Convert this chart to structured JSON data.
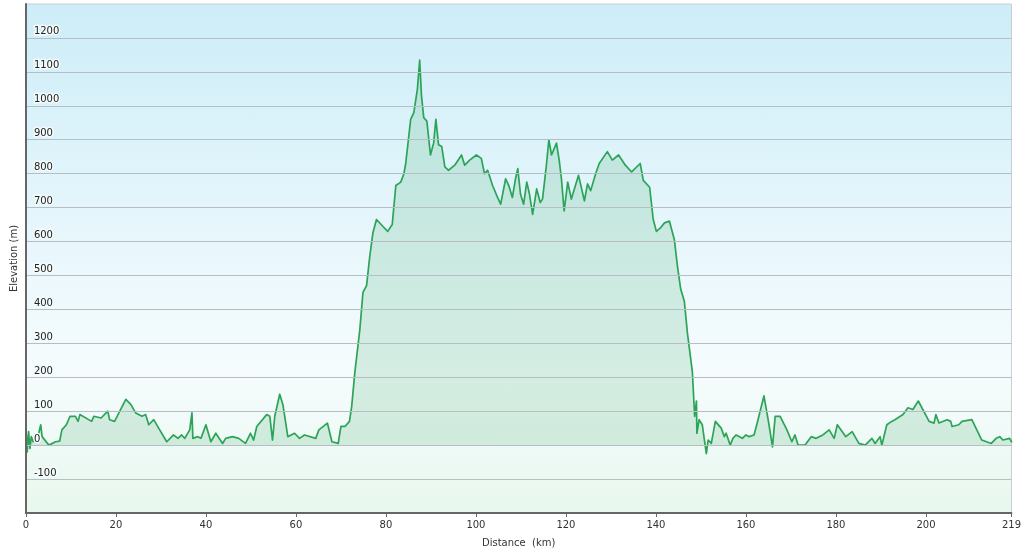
{
  "chart_data": {
    "type": "area",
    "xlabel": "Distance  (km)",
    "ylabel": "Elevation (m)",
    "color": "#2ca457",
    "x": [
      0,
      0.3,
      0.6,
      0.9,
      1.2,
      1.6,
      2.0,
      2.5,
      3.3,
      3.6,
      5.1,
      6.6,
      7.5,
      8.0,
      9.0,
      9.8,
      11.0,
      11.6,
      12.0,
      14.6,
      15.1,
      16.7,
      18.2,
      18.6,
      19.7,
      22.2,
      23.3,
      24.4,
      25.8,
      26.6,
      27.3,
      28.4,
      29.5,
      31.3,
      32.8,
      33.8,
      34.6,
      35.3,
      36.4,
      36.9,
      37.1,
      38.2,
      38.9,
      40.0,
      41.1,
      42.2,
      43.7,
      44.4,
      45.9,
      47.3,
      48.8,
      49.9,
      50.6,
      51.3,
      53.5,
      54.2,
      54.8,
      55.3,
      56.4,
      57.1,
      58.2,
      59.7,
      60.8,
      61.9,
      64.4,
      65.1,
      67.0,
      68.0,
      69.4,
      70.0,
      70.9,
      71.9,
      72.4,
      73.1,
      74.2,
      74.9,
      75.7,
      76.4,
      77.1,
      77.9,
      79.3,
      80.4,
      81.4,
      82.2,
      83.3,
      84.0,
      84.4,
      85.5,
      86.2,
      87.0,
      87.5,
      87.9,
      88.4,
      89.1,
      89.9,
      90.6,
      91.1,
      91.7,
      92.4,
      93.1,
      93.9,
      95.3,
      96.8,
      97.5,
      98.6,
      100.1,
      101.2,
      101.9,
      102.6,
      103.7,
      104.8,
      105.5,
      106.6,
      107.3,
      108.1,
      108.8,
      109.3,
      109.9,
      110.6,
      111.3,
      111.9,
      112.6,
      113.5,
      114.3,
      114.8,
      115.7,
      116.2,
      116.8,
      117.9,
      118.5,
      119.0,
      119.6,
      120.4,
      121.2,
      122.8,
      124.1,
      124.8,
      125.5,
      126.6,
      127.4,
      129.2,
      130.3,
      131.7,
      133.2,
      134.6,
      136.5,
      137.2,
      138.6,
      139.4,
      140.1,
      141.0,
      141.9,
      143.0,
      144.1,
      144.8,
      145.5,
      146.3,
      147.0,
      148.1,
      148.6,
      149.0,
      149.1,
      149.6,
      150.3,
      151.2,
      151.6,
      152.3,
      153.2,
      154.5,
      155.2,
      155.6,
      156.5,
      157.1,
      157.8,
      159.2,
      160.0,
      160.7,
      161.8,
      162.5,
      164.0,
      165.0,
      165.9,
      166.5,
      167.6,
      169.1,
      170.2,
      170.9,
      171.6,
      173.1,
      174.5,
      175.6,
      177.1,
      178.5,
      179.6,
      180.3,
      182.2,
      183.6,
      185.1,
      186.5,
      188.0,
      188.7,
      189.8,
      190.2,
      191.3,
      192.4,
      193.1,
      194.9,
      196.0,
      197.1,
      198.3,
      200.7,
      201.8,
      202.2,
      202.9,
      204.7,
      205.5,
      205.8,
      207.3,
      208.0,
      210.2,
      211.3,
      212.4,
      214.5,
      215.6,
      216.4,
      217.1,
      218.6,
      219.0
    ],
    "values": [
      55,
      -20,
      40,
      -10,
      25,
      10,
      20,
      15,
      60,
      25,
      0,
      10,
      12,
      45,
      60,
      85,
      85,
      70,
      90,
      70,
      85,
      80,
      100,
      75,
      70,
      135,
      120,
      95,
      85,
      90,
      60,
      75,
      50,
      10,
      30,
      20,
      30,
      20,
      45,
      95,
      20,
      25,
      20,
      60,
      10,
      35,
      5,
      20,
      25,
      20,
      5,
      35,
      15,
      55,
      90,
      85,
      15,
      85,
      150,
      120,
      25,
      35,
      20,
      30,
      20,
      45,
      65,
      10,
      5,
      55,
      55,
      70,
      115,
      215,
      340,
      450,
      470,
      555,
      625,
      665,
      645,
      630,
      650,
      765,
      775,
      800,
      830,
      960,
      980,
      1050,
      1135,
      1030,
      965,
      955,
      855,
      890,
      960,
      885,
      880,
      820,
      810,
      825,
      855,
      825,
      840,
      855,
      845,
      800,
      810,
      765,
      730,
      710,
      785,
      765,
      730,
      785,
      815,
      740,
      710,
      775,
      740,
      680,
      755,
      715,
      725,
      830,
      900,
      855,
      890,
      840,
      785,
      690,
      775,
      725,
      795,
      720,
      770,
      750,
      800,
      830,
      865,
      840,
      855,
      825,
      805,
      830,
      780,
      760,
      665,
      630,
      640,
      655,
      660,
      605,
      525,
      460,
      425,
      330,
      215,
      85,
      130,
      35,
      75,
      60,
      -25,
      15,
      5,
      70,
      50,
      25,
      35,
      0,
      20,
      30,
      20,
      30,
      25,
      30,
      65,
      145,
      70,
      -5,
      85,
      85,
      45,
      10,
      30,
      0,
      0,
      25,
      20,
      30,
      45,
      20,
      60,
      25,
      40,
      5,
      0,
      20,
      5,
      25,
      0,
      60,
      70,
      75,
      90,
      110,
      105,
      130,
      70,
      65,
      90,
      65,
      75,
      70,
      55,
      60,
      70,
      75,
      45,
      15,
      5,
      20,
      25,
      15,
      20,
      10
    ],
    "xlim": [
      0,
      219
    ],
    "xticks": [
      0,
      20,
      40,
      60,
      80,
      100,
      120,
      140,
      160,
      180,
      200,
      219
    ],
    "ylim": [
      -200,
      1300
    ],
    "yticks": [
      -100,
      0,
      100,
      200,
      300,
      400,
      500,
      600,
      700,
      800,
      900,
      1000,
      1100,
      1200
    ],
    "grid": "y",
    "marker": "none"
  }
}
